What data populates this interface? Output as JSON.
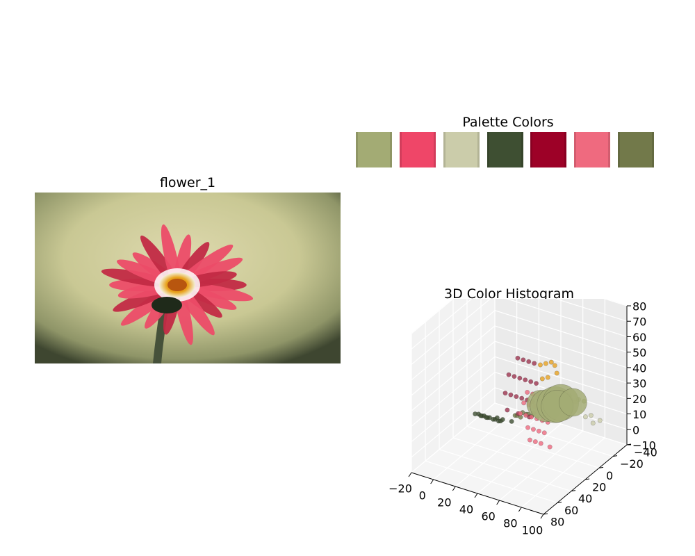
{
  "image_panel": {
    "title": "flower_1",
    "subject_icon": "flower-photo-icon",
    "colors": {
      "bg_center": "#d9d6a8",
      "bg_edge": "#3e4630",
      "petal": "#ec4c68",
      "petal_dark": "#c22a45",
      "center": "#e9a21c",
      "stem": "#46513a"
    }
  },
  "palette": {
    "title": "Palette Colors",
    "colors": [
      "#a3ab74",
      "#ef4668",
      "#cbccaa",
      "#3e4f32",
      "#9d0127",
      "#ef6a7f",
      "#72794a"
    ]
  },
  "chart_data": {
    "type": "scatter",
    "projection": "3d",
    "title": "3D Color Histogram",
    "xlabel": "",
    "ylabel": "",
    "zlabel": "",
    "x_ticks": [
      "−20",
      "0",
      "20",
      "40",
      "60",
      "80",
      "100"
    ],
    "y_ticks": [
      "−40",
      "−20",
      "0",
      "20",
      "40",
      "60",
      "80"
    ],
    "z_ticks": [
      "−10",
      "0",
      "10",
      "20",
      "30",
      "40",
      "50",
      "60",
      "70",
      "80"
    ],
    "xlim": [
      -20,
      100
    ],
    "ylim": [
      -40,
      80
    ],
    "zlim": [
      -10,
      80
    ],
    "grid": true,
    "series": [
      {
        "color": "#3e4f32",
        "points": [
          {
            "x": 0,
            "y": 10,
            "z": 5
          },
          {
            "x": 5,
            "y": 10,
            "z": 5
          },
          {
            "x": 10,
            "y": 10,
            "z": 5
          },
          {
            "x": 15,
            "y": 10,
            "z": 5
          },
          {
            "x": 0,
            "y": 15,
            "z": 8
          },
          {
            "x": 5,
            "y": 15,
            "z": 8
          },
          {
            "x": 10,
            "y": 15,
            "z": 8
          },
          {
            "x": 15,
            "y": 15,
            "z": 8
          },
          {
            "x": 20,
            "y": 15,
            "z": 8
          },
          {
            "x": 0,
            "y": 20,
            "z": 10
          },
          {
            "x": 5,
            "y": 20,
            "z": 10
          },
          {
            "x": 10,
            "y": 20,
            "z": 10
          },
          {
            "x": 20,
            "y": 20,
            "z": 12
          },
          {
            "x": 25,
            "y": 20,
            "z": 12
          },
          {
            "x": 30,
            "y": 15,
            "z": 10
          }
        ]
      },
      {
        "color": "#72794a",
        "points": [
          {
            "x": 30,
            "y": 10,
            "z": 12
          },
          {
            "x": 35,
            "y": 10,
            "z": 12
          },
          {
            "x": 40,
            "y": 10,
            "z": 15
          },
          {
            "x": 35,
            "y": 15,
            "z": 15
          },
          {
            "x": 40,
            "y": 15,
            "z": 18
          },
          {
            "x": 45,
            "y": 15,
            "z": 18
          },
          {
            "x": 50,
            "y": 15,
            "z": 20
          },
          {
            "x": 45,
            "y": 10,
            "z": 15
          }
        ]
      },
      {
        "color": "#a3ab74",
        "points": [
          {
            "x": 55,
            "y": 0,
            "z": 20
          },
          {
            "x": 60,
            "y": 0,
            "z": 22
          },
          {
            "x": 60,
            "y": 5,
            "z": 25
          },
          {
            "x": 65,
            "y": 5,
            "z": 25
          },
          {
            "x": 65,
            "y": -5,
            "z": 22
          },
          {
            "x": 70,
            "y": 0,
            "z": 25
          },
          {
            "x": 70,
            "y": -5,
            "z": 28
          },
          {
            "x": 75,
            "y": -5,
            "z": 25
          },
          {
            "x": 75,
            "y": -10,
            "z": 25
          },
          {
            "x": 80,
            "y": -10,
            "z": 25
          }
        ]
      },
      {
        "color": "#9d3550",
        "points": [
          {
            "x": 45,
            "y": 30,
            "z": 60
          },
          {
            "x": 50,
            "y": 30,
            "z": 60
          },
          {
            "x": 55,
            "y": 30,
            "z": 60
          },
          {
            "x": 60,
            "y": 30,
            "z": 60
          },
          {
            "x": 40,
            "y": 35,
            "z": 50
          },
          {
            "x": 45,
            "y": 35,
            "z": 50
          },
          {
            "x": 50,
            "y": 35,
            "z": 50
          },
          {
            "x": 55,
            "y": 35,
            "z": 50
          },
          {
            "x": 60,
            "y": 35,
            "z": 50
          },
          {
            "x": 65,
            "y": 35,
            "z": 50
          },
          {
            "x": 40,
            "y": 40,
            "z": 40
          },
          {
            "x": 45,
            "y": 40,
            "z": 40
          },
          {
            "x": 50,
            "y": 40,
            "z": 40
          },
          {
            "x": 55,
            "y": 40,
            "z": 40
          },
          {
            "x": 60,
            "y": 40,
            "z": 40
          },
          {
            "x": 65,
            "y": 40,
            "z": 40
          },
          {
            "x": 45,
            "y": 45,
            "z": 32
          },
          {
            "x": 55,
            "y": 45,
            "z": 32
          },
          {
            "x": 65,
            "y": 45,
            "z": 32
          }
        ]
      },
      {
        "color": "#ef6a7f",
        "points": [
          {
            "x": 60,
            "y": 40,
            "z": 45
          },
          {
            "x": 65,
            "y": 40,
            "z": 45
          },
          {
            "x": 70,
            "y": 40,
            "z": 45
          },
          {
            "x": 75,
            "y": 40,
            "z": 45
          },
          {
            "x": 80,
            "y": 40,
            "z": 45
          },
          {
            "x": 60,
            "y": 45,
            "z": 40
          },
          {
            "x": 65,
            "y": 45,
            "z": 40
          },
          {
            "x": 70,
            "y": 45,
            "z": 40
          },
          {
            "x": 75,
            "y": 45,
            "z": 40
          },
          {
            "x": 80,
            "y": 45,
            "z": 40
          },
          {
            "x": 60,
            "y": 50,
            "z": 35
          },
          {
            "x": 65,
            "y": 50,
            "z": 35
          },
          {
            "x": 70,
            "y": 50,
            "z": 35
          },
          {
            "x": 75,
            "y": 50,
            "z": 35
          },
          {
            "x": 80,
            "y": 50,
            "z": 35
          },
          {
            "x": 85,
            "y": 50,
            "z": 35
          },
          {
            "x": 70,
            "y": 55,
            "z": 30
          },
          {
            "x": 75,
            "y": 55,
            "z": 30
          },
          {
            "x": 80,
            "y": 55,
            "z": 30
          },
          {
            "x": 85,
            "y": 55,
            "z": 30
          },
          {
            "x": 75,
            "y": 60,
            "z": 25
          },
          {
            "x": 80,
            "y": 60,
            "z": 25
          },
          {
            "x": 85,
            "y": 60,
            "z": 25
          },
          {
            "x": 90,
            "y": 55,
            "z": 22
          }
        ]
      },
      {
        "color": "#e8a222",
        "points": [
          {
            "x": 75,
            "y": 45,
            "z": 68
          },
          {
            "x": 80,
            "y": 45,
            "z": 70
          },
          {
            "x": 85,
            "y": 45,
            "z": 72
          },
          {
            "x": 85,
            "y": 40,
            "z": 68
          },
          {
            "x": 80,
            "y": 50,
            "z": 62
          },
          {
            "x": 85,
            "y": 50,
            "z": 64
          },
          {
            "x": 90,
            "y": 45,
            "z": 66
          }
        ]
      },
      {
        "color": "#a3ab74",
        "points": [
          {
            "x": 50,
            "y": 5,
            "z": 22,
            "weight": 4
          },
          {
            "x": 55,
            "y": 5,
            "z": 22,
            "weight": 5
          },
          {
            "x": 60,
            "y": 0,
            "z": 22,
            "weight": 6
          },
          {
            "x": 62,
            "y": -5,
            "z": 22,
            "weight": 6
          },
          {
            "x": 65,
            "y": 5,
            "z": 24,
            "weight": 5
          },
          {
            "x": 70,
            "y": -10,
            "z": 22,
            "weight": 4
          }
        ]
      },
      {
        "color": "#cbccaa",
        "points": [
          {
            "x": 75,
            "y": -20,
            "z": 10
          },
          {
            "x": 80,
            "y": -20,
            "z": 12
          },
          {
            "x": 85,
            "y": -15,
            "z": 10
          },
          {
            "x": 85,
            "y": -25,
            "z": 8
          }
        ]
      }
    ]
  }
}
